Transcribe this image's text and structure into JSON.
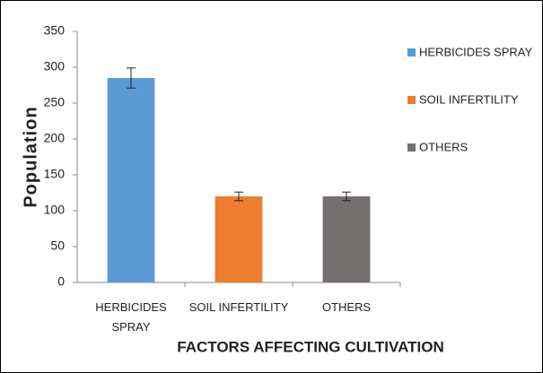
{
  "chart_data": {
    "type": "bar",
    "categories": [
      "HERBICIDES SPRAY",
      "SOIL INFERTILITY",
      "OTHERS"
    ],
    "values": [
      285,
      120,
      120
    ],
    "errors": [
      14,
      6,
      6
    ],
    "colors": [
      "#5b9bd5",
      "#ed7d31",
      "#747070"
    ],
    "xlabel": "FACTORS AFFECTING CULTIVATION",
    "ylabel": "Population",
    "ylim": [
      0,
      350
    ],
    "yticks": [
      0,
      50,
      100,
      150,
      200,
      250,
      300,
      350
    ],
    "grid": false,
    "legend": "right"
  }
}
